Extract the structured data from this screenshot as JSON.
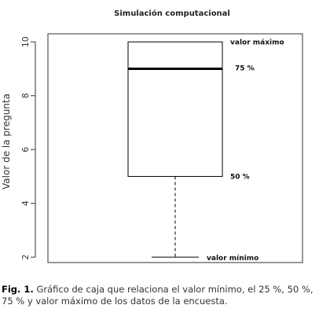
{
  "chart_data": {
    "type": "boxplot",
    "title": "Simulación computacional",
    "ylabel": "Valor de la pregunta",
    "xlabel": "",
    "ylim": [
      1.8,
      10.3
    ],
    "y_ticks": [
      2,
      4,
      6,
      8,
      10
    ],
    "grid": false,
    "box": {
      "min": 2,
      "q1": 5,
      "median": 9,
      "q3": 10,
      "max": 10
    },
    "annotations": [
      {
        "text": "valor máximo",
        "y": 10
      },
      {
        "text": "75 %",
        "y": 9
      },
      {
        "text": "50 %",
        "y": 5
      },
      {
        "text": "valor mínimo",
        "y": 2
      }
    ]
  },
  "caption": {
    "label": "Fig. 1.",
    "text": "Gráfico de caja que relaciona el valor mínimo, el 25 %, 50 %, 75 % y valor máximo de los datos de la encuesta."
  },
  "colors": {
    "ink": "#000000",
    "axis": "#333333"
  }
}
